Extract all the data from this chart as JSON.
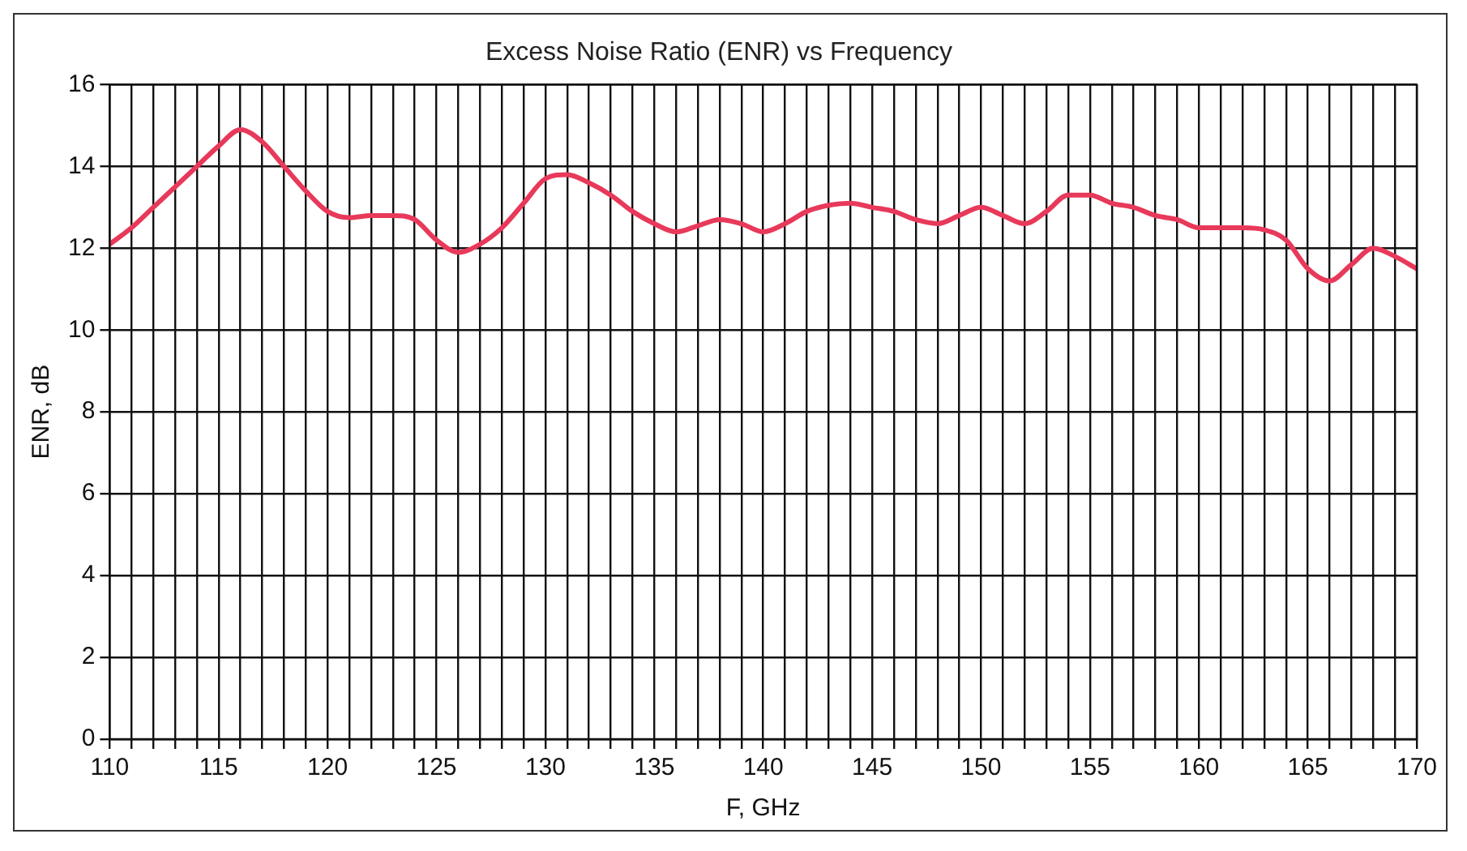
{
  "chart_data": {
    "type": "line",
    "title": "Excess Noise Ratio (ENR) vs Frequency",
    "xlabel": "F, GHz",
    "ylabel": "ENR, dB",
    "x": [
      110,
      111,
      112,
      113,
      114,
      115,
      116,
      117,
      118,
      119,
      120,
      121,
      122,
      123,
      124,
      125,
      126,
      127,
      128,
      129,
      130,
      131,
      132,
      133,
      134,
      135,
      136,
      137,
      138,
      139,
      140,
      141,
      142,
      143,
      144,
      145,
      146,
      147,
      148,
      149,
      150,
      151,
      152,
      153,
      154,
      155,
      156,
      157,
      158,
      159,
      160,
      161,
      162,
      163,
      164,
      165,
      166,
      167,
      168,
      169,
      170
    ],
    "series": [
      {
        "color": "#e8395a",
        "values": [
          12.1,
          12.5,
          13.0,
          13.5,
          14.0,
          14.5,
          14.9,
          14.6,
          14.0,
          13.4,
          12.9,
          12.75,
          12.8,
          12.8,
          12.7,
          12.2,
          11.9,
          12.1,
          12.5,
          13.1,
          13.7,
          13.8,
          13.6,
          13.3,
          12.9,
          12.6,
          12.4,
          12.55,
          12.7,
          12.6,
          12.4,
          12.6,
          12.9,
          13.05,
          13.1,
          13.0,
          12.9,
          12.7,
          12.6,
          12.8,
          13.0,
          12.8,
          12.6,
          12.9,
          13.3,
          13.3,
          13.1,
          13.0,
          12.8,
          12.7,
          12.5,
          12.5,
          12.5,
          12.45,
          12.2,
          11.5,
          11.2,
          11.6,
          12.0,
          11.8,
          11.5
        ]
      }
    ],
    "xlim": [
      110,
      170
    ],
    "xticks": [
      110,
      {
        "value": 111,
        "label": null
      },
      {
        "value": 112,
        "label": null
      },
      {
        "value": 113,
        "label": null
      },
      {
        "value": 114,
        "label": null
      },
      115,
      {
        "value": 116,
        "label": null
      },
      {
        "value": 117,
        "label": null
      },
      {
        "value": 118,
        "label": null
      },
      {
        "value": 119,
        "label": null
      },
      120,
      {
        "value": 121,
        "label": null
      },
      {
        "value": 122,
        "label": null
      },
      {
        "value": 123,
        "label": null
      },
      {
        "value": 124,
        "label": null
      },
      125,
      {
        "value": 126,
        "label": null
      },
      {
        "value": 127,
        "label": null
      },
      {
        "value": 128,
        "label": null
      },
      {
        "value": 129,
        "label": null
      },
      130,
      {
        "value": 131,
        "label": null
      },
      {
        "value": 132,
        "label": null
      },
      {
        "value": 133,
        "label": null
      },
      {
        "value": 134,
        "label": null
      },
      135,
      {
        "value": 136,
        "label": null
      },
      {
        "value": 137,
        "label": null
      },
      {
        "value": 138,
        "label": null
      },
      {
        "value": 139,
        "label": null
      },
      140,
      {
        "value": 141,
        "label": null
      },
      {
        "value": 142,
        "label": null
      },
      {
        "value": 143,
        "label": null
      },
      {
        "value": 144,
        "label": null
      },
      145,
      {
        "value": 146,
        "label": null
      },
      {
        "value": 147,
        "label": null
      },
      {
        "value": 148,
        "label": null
      },
      {
        "value": 149,
        "label": null
      },
      150,
      {
        "value": 151,
        "label": null
      },
      {
        "value": 152,
        "label": null
      },
      {
        "value": 153,
        "label": null
      },
      {
        "value": 154,
        "label": null
      },
      155,
      {
        "value": 156,
        "label": null
      },
      {
        "value": 157,
        "label": null
      },
      {
        "value": 158,
        "label": null
      },
      {
        "value": 159,
        "label": null
      },
      160,
      {
        "value": 161,
        "label": null
      },
      {
        "value": 162,
        "label": null
      },
      {
        "value": 163,
        "label": null
      },
      {
        "value": 164,
        "label": null
      },
      165,
      {
        "value": 166,
        "label": null
      },
      {
        "value": 167,
        "label": null
      },
      {
        "value": 168,
        "label": null
      },
      {
        "value": 169,
        "label": null
      },
      170
    ],
    "ylim": [
      0,
      16
    ],
    "yticks": [
      0,
      2,
      4,
      6,
      8,
      10,
      12,
      14,
      16
    ],
    "grid": true,
    "legend": false,
    "marker": "none",
    "line_style": "solid"
  }
}
